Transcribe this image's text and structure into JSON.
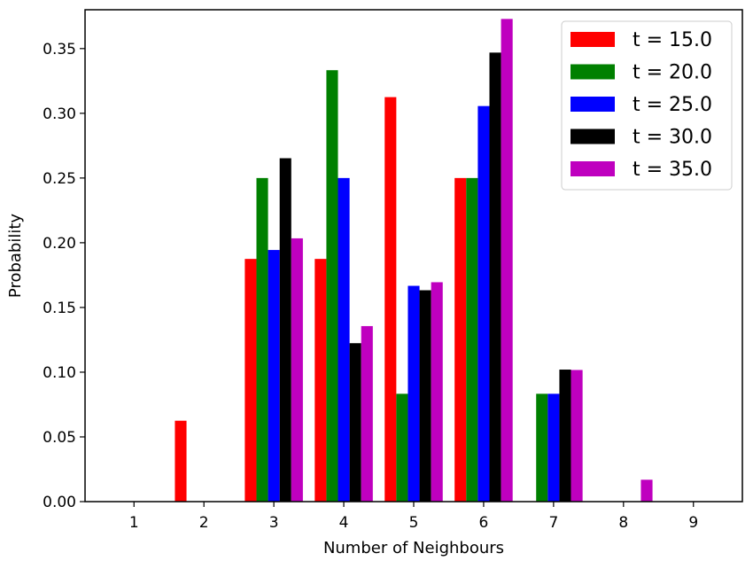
{
  "chart_data": {
    "type": "bar",
    "title": "",
    "xlabel": "Number of Neighbours",
    "ylabel": "Probability",
    "categories": [
      "1",
      "2",
      "3",
      "4",
      "5",
      "6",
      "7",
      "8",
      "9"
    ],
    "ylim": [
      0,
      0.38
    ],
    "yticks": [
      "0.00",
      "0.05",
      "0.10",
      "0.15",
      "0.20",
      "0.25",
      "0.30",
      "0.35"
    ],
    "grid": false,
    "legend_position": "top-right",
    "series": [
      {
        "name": "t = 15.0",
        "color": "#ff0000",
        "values": [
          0,
          0.0625,
          0.1875,
          0.1875,
          0.3125,
          0.25,
          0,
          0,
          0
        ]
      },
      {
        "name": "t = 20.0",
        "color": "#008000",
        "values": [
          0,
          0,
          0.25,
          0.3333,
          0.0833,
          0.25,
          0.0833,
          0,
          0
        ]
      },
      {
        "name": "t = 25.0",
        "color": "#0000ff",
        "values": [
          0,
          0,
          0.1944,
          0.25,
          0.1667,
          0.3056,
          0.0833,
          0,
          0
        ]
      },
      {
        "name": "t = 30.0",
        "color": "#000000",
        "values": [
          0,
          0,
          0.2653,
          0.1224,
          0.1633,
          0.3469,
          0.102,
          0,
          0
        ]
      },
      {
        "name": "t = 35.0",
        "color": "#bf00bf",
        "values": [
          0,
          0,
          0.2034,
          0.1356,
          0.1695,
          0.3729,
          0.1017,
          0.0169,
          0
        ]
      }
    ]
  }
}
